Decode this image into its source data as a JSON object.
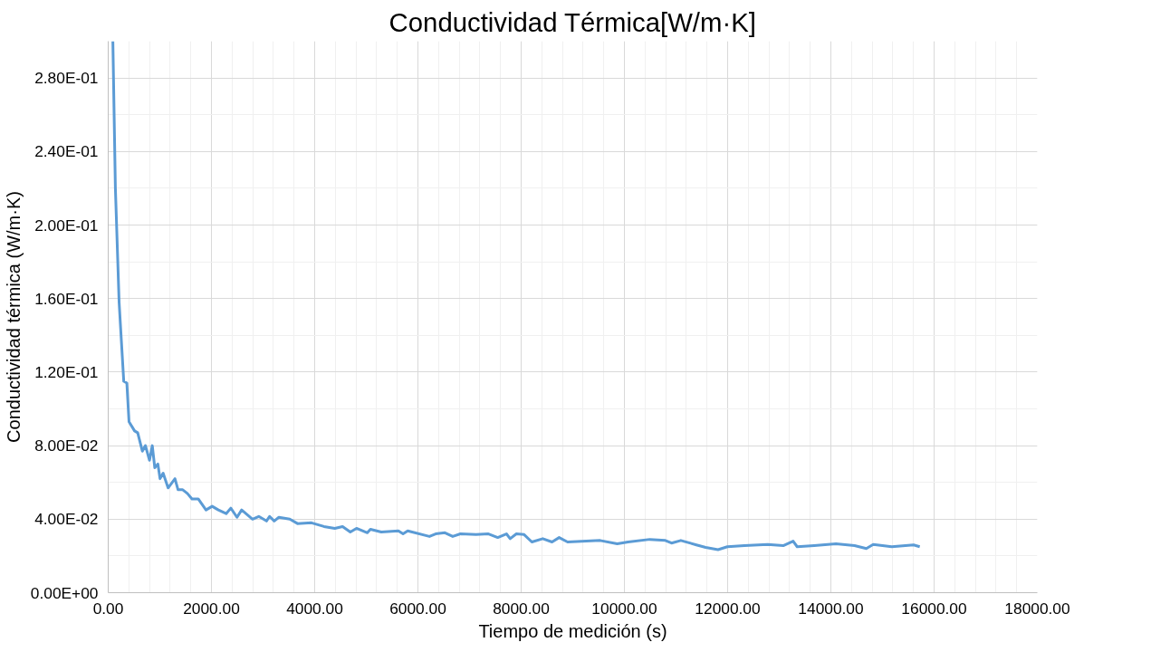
{
  "chart_data": {
    "type": "line",
    "title": "Conductividad Térmica[W/m·K]",
    "xlabel": "Tiempo de medición (s)",
    "ylabel": "Conductividad térmica (W/m·K)",
    "xlim": [
      0,
      18000
    ],
    "ylim": [
      0,
      0.3
    ],
    "xticks": [
      {
        "value": 0,
        "label": "0.00"
      },
      {
        "value": 2000,
        "label": "2000.00"
      },
      {
        "value": 4000,
        "label": "4000.00"
      },
      {
        "value": 6000,
        "label": "6000.00"
      },
      {
        "value": 8000,
        "label": "8000.00"
      },
      {
        "value": 10000,
        "label": "10000.00"
      },
      {
        "value": 12000,
        "label": "12000.00"
      },
      {
        "value": 14000,
        "label": "14000.00"
      },
      {
        "value": 16000,
        "label": "16000.00"
      },
      {
        "value": 18000,
        "label": "18000.00"
      }
    ],
    "yticks": [
      {
        "value": 0,
        "label": "0.00E+00"
      },
      {
        "value": 0.04,
        "label": "4.00E-02"
      },
      {
        "value": 0.08,
        "label": "8.00E-02"
      },
      {
        "value": 0.12,
        "label": "1.20E-01"
      },
      {
        "value": 0.16,
        "label": "1.60E-01"
      },
      {
        "value": 0.2,
        "label": "2.00E-01"
      },
      {
        "value": 0.24,
        "label": "2.40E-01"
      },
      {
        "value": 0.28,
        "label": "2.80E-01"
      }
    ],
    "grid": true,
    "marker": "none",
    "line_style": "solid",
    "series": [
      {
        "color": "#5b9bd5",
        "x": [
          90,
          139,
          211,
          301,
          361,
          403,
          511,
          571,
          661,
          721,
          800,
          854,
          902,
          962,
          1004,
          1064,
          1160,
          1293,
          1353,
          1443,
          1533,
          1623,
          1744,
          1894,
          2014,
          2134,
          2285,
          2375,
          2495,
          2585,
          2796,
          2916,
          3066,
          3126,
          3216,
          3306,
          3517,
          3667,
          3938,
          4179,
          4389,
          4540,
          4690,
          4810,
          5020,
          5080,
          5290,
          5622,
          5712,
          5802,
          6223,
          6343,
          6523,
          6674,
          6824,
          7125,
          7366,
          7546,
          7715,
          7787,
          7907,
          8057,
          8207,
          8418,
          8598,
          8736,
          8899,
          9170,
          9530,
          9861,
          10071,
          10492,
          10793,
          10913,
          11093,
          11394,
          11574,
          11814,
          11995,
          12325,
          12776,
          13077,
          13269,
          13347,
          13677,
          14099,
          14459,
          14687,
          14820,
          15180,
          15602,
          15722
        ],
        "values": [
          0.3,
          0.22,
          0.158,
          0.115,
          0.114,
          0.093,
          0.088,
          0.087,
          0.077,
          0.08,
          0.072,
          0.08,
          0.068,
          0.07,
          0.062,
          0.065,
          0.057,
          0.062,
          0.056,
          0.056,
          0.054,
          0.051,
          0.051,
          0.045,
          0.047,
          0.045,
          0.043,
          0.046,
          0.041,
          0.045,
          0.04,
          0.0415,
          0.039,
          0.0415,
          0.039,
          0.041,
          0.04,
          0.0376,
          0.038,
          0.036,
          0.035,
          0.036,
          0.033,
          0.035,
          0.0326,
          0.0345,
          0.033,
          0.0336,
          0.032,
          0.0336,
          0.0306,
          0.032,
          0.0326,
          0.0306,
          0.032,
          0.0316,
          0.032,
          0.03,
          0.032,
          0.0294,
          0.032,
          0.0316,
          0.0276,
          0.0294,
          0.0276,
          0.03,
          0.0276,
          0.028,
          0.0284,
          0.0266,
          0.0276,
          0.029,
          0.0284,
          0.027,
          0.0284,
          0.026,
          0.0246,
          0.0234,
          0.025,
          0.0256,
          0.0262,
          0.0256,
          0.028,
          0.025,
          0.0256,
          0.0266,
          0.0256,
          0.024,
          0.0262,
          0.025,
          0.026,
          0.025
        ]
      }
    ]
  }
}
